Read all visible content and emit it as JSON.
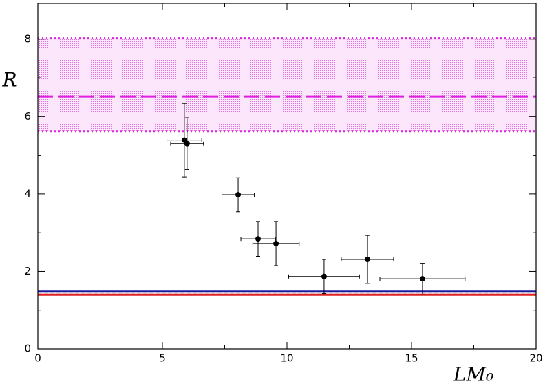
{
  "chart_data": {
    "type": "scatter",
    "x_label": "LM₀",
    "y_label": "R",
    "xlim": [
      0,
      20
    ],
    "ylim": [
      0,
      8.92
    ],
    "xticks": [
      0,
      5,
      10,
      15,
      20
    ],
    "yticks": [
      0,
      2,
      4,
      6,
      8
    ],
    "xminor": [
      2.5,
      7.5,
      12.5,
      17.5
    ],
    "yminor": [
      1,
      3,
      5,
      7
    ],
    "band": {
      "low": 5.62,
      "high": 8.02,
      "center": 6.52,
      "color": "#e020e0"
    },
    "hlines": [
      {
        "value": 1.48,
        "color": "#1a1aa0"
      },
      {
        "value": 1.4,
        "color": "#e02020"
      },
      {
        "value": 1.44,
        "color": "#dddddd"
      }
    ],
    "series": [
      {
        "color": "#000000",
        "x": [
          5.88,
          5.99,
          8.04,
          8.84,
          9.56,
          11.49,
          13.23,
          15.44
        ],
        "y": [
          5.39,
          5.3,
          3.98,
          2.84,
          2.72,
          1.87,
          2.31,
          1.81
        ],
        "xerr": [
          0.7,
          0.66,
          0.65,
          0.69,
          0.93,
          1.42,
          1.05,
          1.71
        ],
        "yerr": [
          0.95,
          0.67,
          0.44,
          0.45,
          0.57,
          0.44,
          0.62,
          0.4
        ]
      }
    ]
  }
}
